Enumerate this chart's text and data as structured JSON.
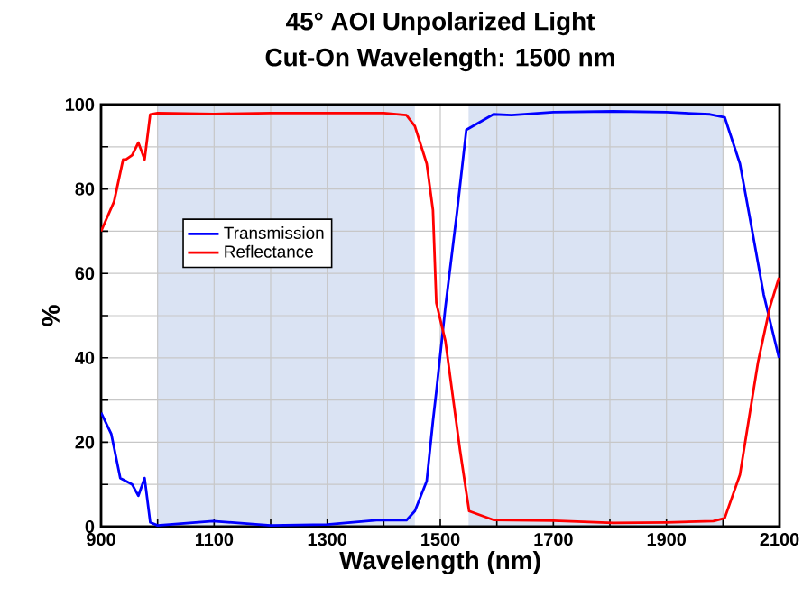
{
  "chart_data": {
    "type": "line",
    "title": "45° AOI Unpolarized Light",
    "subtitle": "Cut-On Wavelength: 1500 nm",
    "xlabel": "Wavelength (nm)",
    "ylabel": "%",
    "xlim": [
      900,
      2100
    ],
    "ylim": [
      0,
      100
    ],
    "xticks": [
      900,
      {
        "value": 1000,
        "label": null
      },
      1100,
      {
        "value": 1200,
        "label": null
      },
      1300,
      {
        "value": 1400,
        "label": null
      },
      1500,
      {
        "value": 1600,
        "label": null
      },
      1700,
      {
        "value": 1800,
        "label": null
      },
      1900,
      {
        "value": 2000,
        "label": null
      },
      2100
    ],
    "yticks": [
      0,
      {
        "value": 10,
        "label": null
      },
      20,
      {
        "value": 30,
        "label": null
      },
      40,
      {
        "value": 50,
        "label": null
      },
      60,
      {
        "value": 70,
        "label": null
      },
      80,
      {
        "value": 90,
        "label": null
      },
      100
    ],
    "grid": true,
    "legend": "left",
    "line_style": "solid",
    "marker": "none",
    "bands": [
      {
        "axis": "x",
        "from": 1000,
        "to": 1455,
        "color": "#dae3f3"
      },
      {
        "axis": "x",
        "from": 1550,
        "to": 2000,
        "color": "#dae3f3"
      }
    ],
    "series": [
      {
        "name": "Transmission",
        "color": "#0000ff",
        "x": [
          900,
          918,
          934,
          944,
          955,
          966,
          977,
          987,
          1000,
          1098,
          1200,
          1300,
          1392,
          1440,
          1455,
          1476,
          1487,
          1493,
          1509,
          1530,
          1546,
          1594,
          1626,
          1700,
          1806,
          1900,
          1977,
          2003,
          2030,
          2051,
          2072,
          2099
        ],
        "values": [
          27,
          22,
          11.5,
          10.8,
          10,
          7.3,
          11.5,
          1,
          0.3,
          1.3,
          0.3,
          0.5,
          1.6,
          1.5,
          3.7,
          10.8,
          25,
          32,
          52,
          75,
          94,
          97.7,
          97.5,
          98.2,
          98.4,
          98.2,
          97.7,
          97,
          86,
          70.6,
          55,
          40
        ]
      },
      {
        "name": "Reflectance",
        "color": "#ff0000",
        "x": [
          900,
          923,
          939,
          944,
          955,
          966,
          977,
          987,
          1000,
          1100,
          1200,
          1300,
          1400,
          1440,
          1455,
          1476,
          1487,
          1493,
          1509,
          1535,
          1551,
          1594,
          1700,
          1806,
          1900,
          1983,
          2003,
          2030,
          2062,
          2083,
          2099
        ],
        "values": [
          70,
          77,
          87,
          87,
          88,
          91,
          87,
          97.7,
          98,
          97.8,
          98,
          98,
          98,
          97.5,
          94.9,
          86,
          75,
          53,
          44,
          18,
          3.7,
          1.6,
          1.4,
          0.9,
          1,
          1.3,
          2,
          12.3,
          39,
          52,
          59
        ]
      }
    ]
  }
}
